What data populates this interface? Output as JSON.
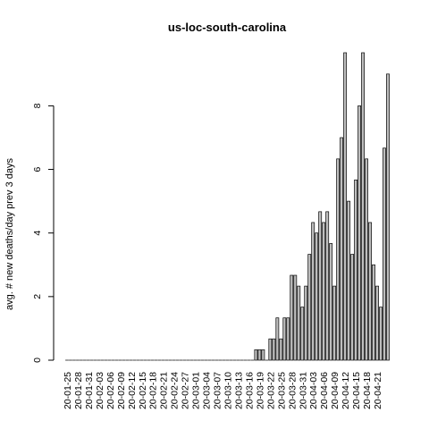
{
  "chart_data": {
    "type": "bar",
    "title": "us-loc-south-carolina",
    "xlabel": "",
    "ylabel": "avg. # new deaths/day prev  3  days",
    "ylim": [
      0,
      9.67
    ],
    "yticks": [
      0,
      2,
      4,
      6,
      8
    ],
    "xtick_labels": [
      "20-01-25",
      "20-01-28",
      "20-01-31",
      "20-02-03",
      "20-02-06",
      "20-02-09",
      "20-02-12",
      "20-02-15",
      "20-02-18",
      "20-02-21",
      "20-02-24",
      "20-02-27",
      "20-03-01",
      "20-03-04",
      "20-03-07",
      "20-03-10",
      "20-03-13",
      "20-03-16",
      "20-03-19",
      "20-03-22",
      "20-03-25",
      "20-03-28",
      "20-03-31",
      "20-04-03",
      "20-04-06",
      "20-04-09",
      "20-04-12",
      "20-04-15",
      "20-04-18",
      "20-04-21"
    ],
    "grid": false,
    "bar_fill": "#bebebe",
    "bar_stroke": "#000000",
    "x_start_date": "2020-01-25",
    "tick_every": 3,
    "values": [
      0,
      0,
      0,
      0,
      0,
      0,
      0,
      0,
      0,
      0,
      0,
      0,
      0,
      0,
      0,
      0,
      0,
      0,
      0,
      0,
      0,
      0,
      0,
      0,
      0,
      0,
      0,
      0,
      0,
      0,
      0,
      0,
      0,
      0,
      0,
      0,
      0,
      0,
      0,
      0,
      0,
      0,
      0,
      0,
      0,
      0,
      0,
      0,
      0,
      0,
      0,
      0,
      0,
      0.33,
      0.33,
      0.33,
      0,
      0.67,
      0.67,
      1.33,
      0.67,
      1.33,
      1.33,
      2.67,
      2.67,
      2.33,
      1.67,
      2.33,
      3.33,
      4.33,
      4,
      4.67,
      4.33,
      4.67,
      3.67,
      2.33,
      6.33,
      7,
      9.67,
      5,
      3.33,
      5.67,
      8,
      9.67,
      6.33,
      4.33,
      3,
      2.33,
      1.67,
      6.67,
      9
    ]
  }
}
